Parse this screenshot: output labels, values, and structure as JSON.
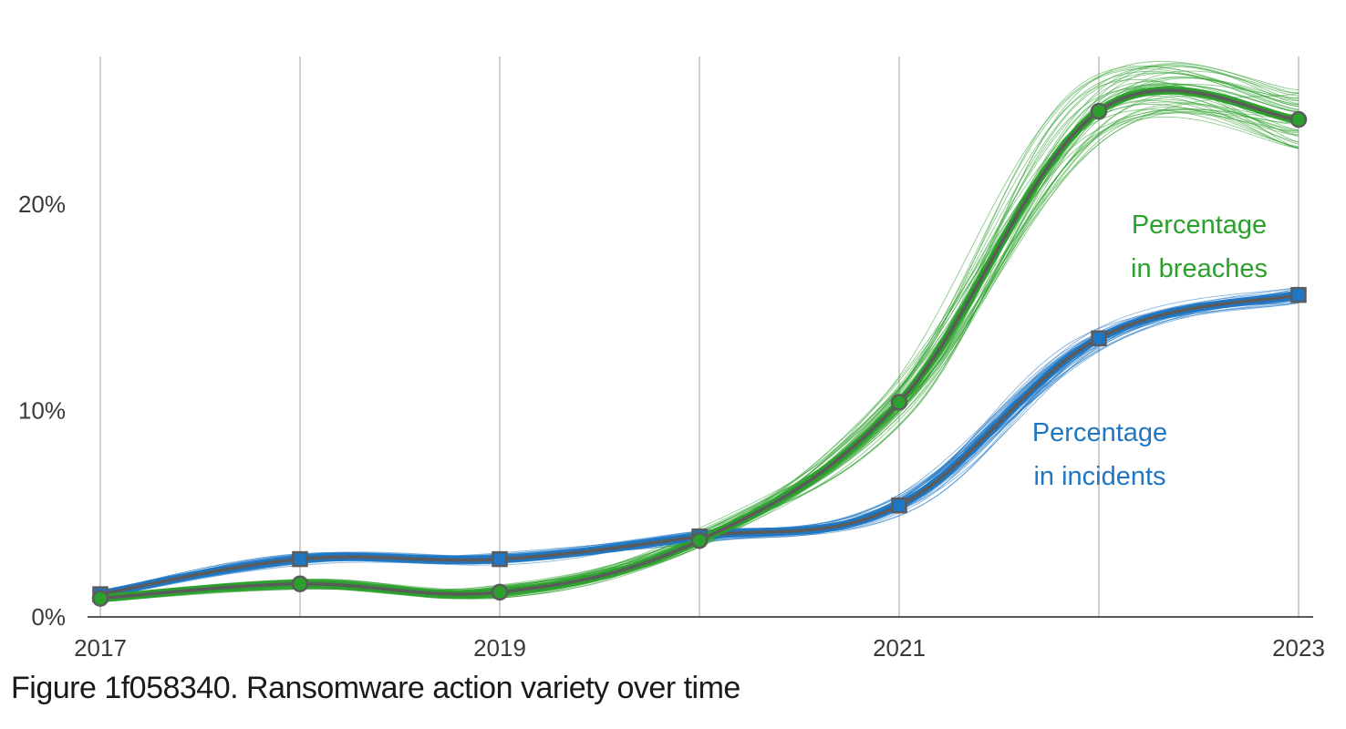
{
  "caption": "Figure 1f058340. Ransomware action variety over time",
  "chart_data": {
    "type": "line",
    "title": "",
    "xlabel": "",
    "ylabel": "",
    "x": [
      2017,
      2018,
      2019,
      2020,
      2021,
      2022,
      2023
    ],
    "xticks": [
      "2017",
      "2019",
      "2021",
      "2023"
    ],
    "yticks": [
      "0%",
      "10%",
      "20%"
    ],
    "xlim": [
      2017,
      2023
    ],
    "ylim": [
      0,
      27
    ],
    "grid": "vertical",
    "series": [
      {
        "name": "Percentage in breaches",
        "color": "#2ca02c",
        "marker": "circle",
        "values": [
          0.9,
          1.6,
          1.2,
          3.7,
          10.4,
          24.5,
          24.1
        ]
      },
      {
        "name": "Percentage in incidents",
        "color": "#1f77c4",
        "marker": "square",
        "values": [
          1.1,
          2.8,
          2.8,
          3.9,
          5.4,
          13.5,
          15.6
        ]
      }
    ],
    "annotations": [
      {
        "series": 0,
        "lines": [
          "Percentage",
          "in breaches"
        ],
        "color": "#2ca02c"
      },
      {
        "series": 1,
        "lines": [
          "Percentage",
          "in incidents"
        ],
        "color": "#1f77c4"
      }
    ]
  }
}
